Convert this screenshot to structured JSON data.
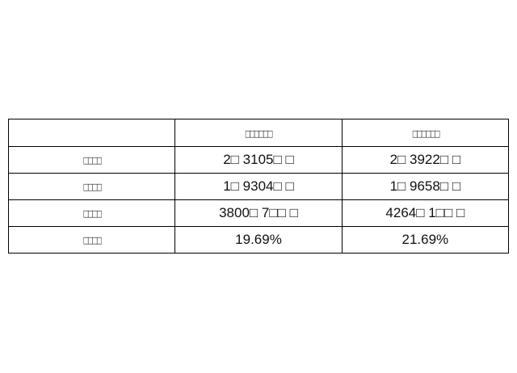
{
  "table": {
    "header": [
      "",
      "□□□□□□",
      "□□□□□□"
    ],
    "rows": [
      {
        "label": "□□□□",
        "values": [
          "2□ 3105□ □",
          "2□ 3922□ □"
        ]
      },
      {
        "label": "□□□□",
        "values": [
          "1□ 9304□ □",
          "1□ 9658□ □"
        ]
      },
      {
        "label": "□□□□",
        "values": [
          "3800□ 7□□ □",
          "4264□ 1□□ □"
        ]
      },
      {
        "label": "□□□□",
        "values": [
          "19.69%",
          "21.69%"
        ]
      }
    ]
  }
}
